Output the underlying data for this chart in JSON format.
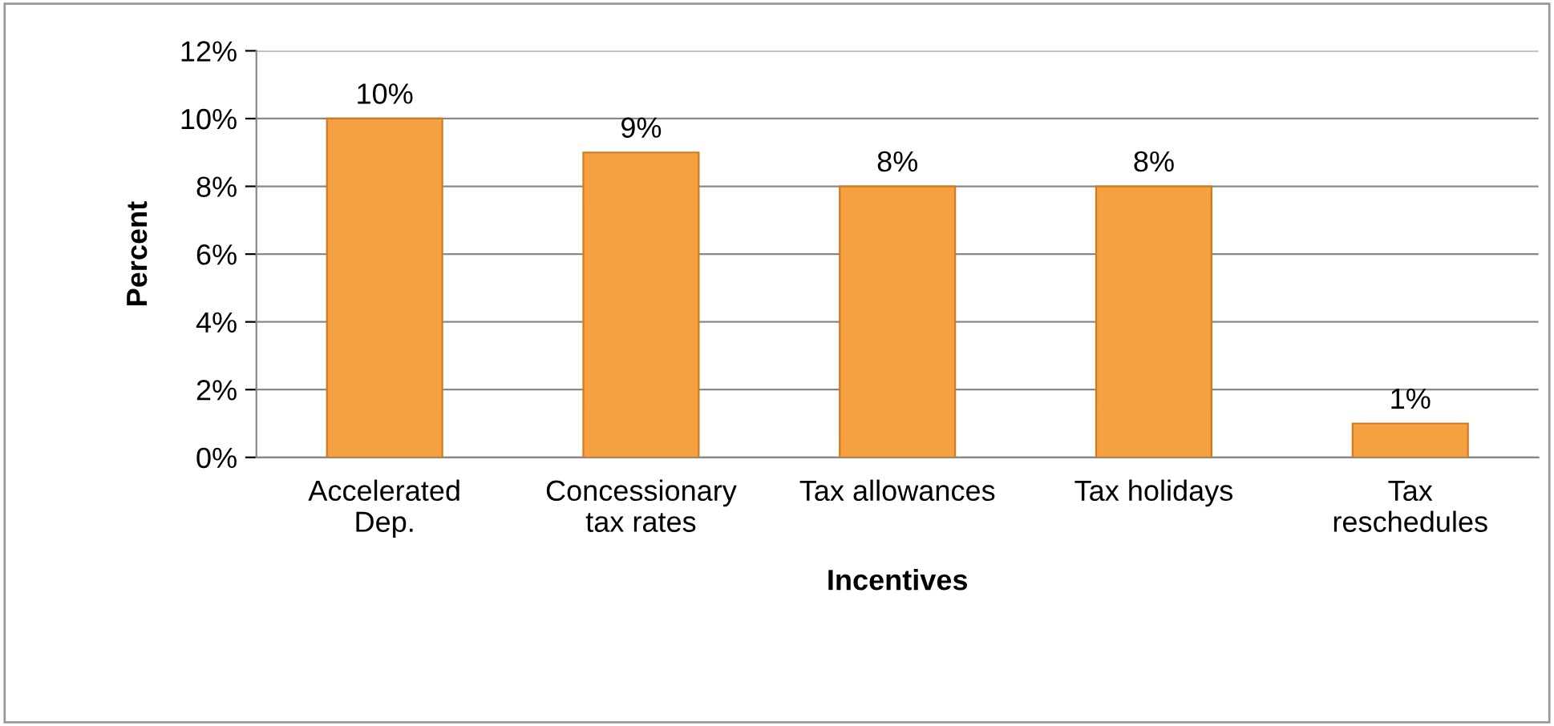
{
  "chart_data": {
    "type": "bar",
    "xlabel": "Incentives",
    "ylabel": "Percent",
    "categories": [
      "Accelerated\nDep.",
      "Concessionary\ntax rates",
      "Tax allowances",
      "Tax holidays",
      "Tax\nreschedules"
    ],
    "values": [
      10,
      9,
      8,
      8,
      1
    ],
    "color": "#f5a142",
    "value_labels": [
      "10%",
      "9%",
      "8%",
      "8%",
      "1%"
    ],
    "ylim": [
      0,
      12
    ],
    "yticks": [
      {
        "value": 0,
        "label": "0%"
      },
      {
        "value": 2,
        "label": "2%"
      },
      {
        "value": 4,
        "label": "4%"
      },
      {
        "value": 6,
        "label": "6%"
      },
      {
        "value": 8,
        "label": "8%"
      },
      {
        "value": 10,
        "label": "10%"
      },
      {
        "value": 12,
        "label": "12%"
      }
    ],
    "grid": "y",
    "legend": false
  }
}
